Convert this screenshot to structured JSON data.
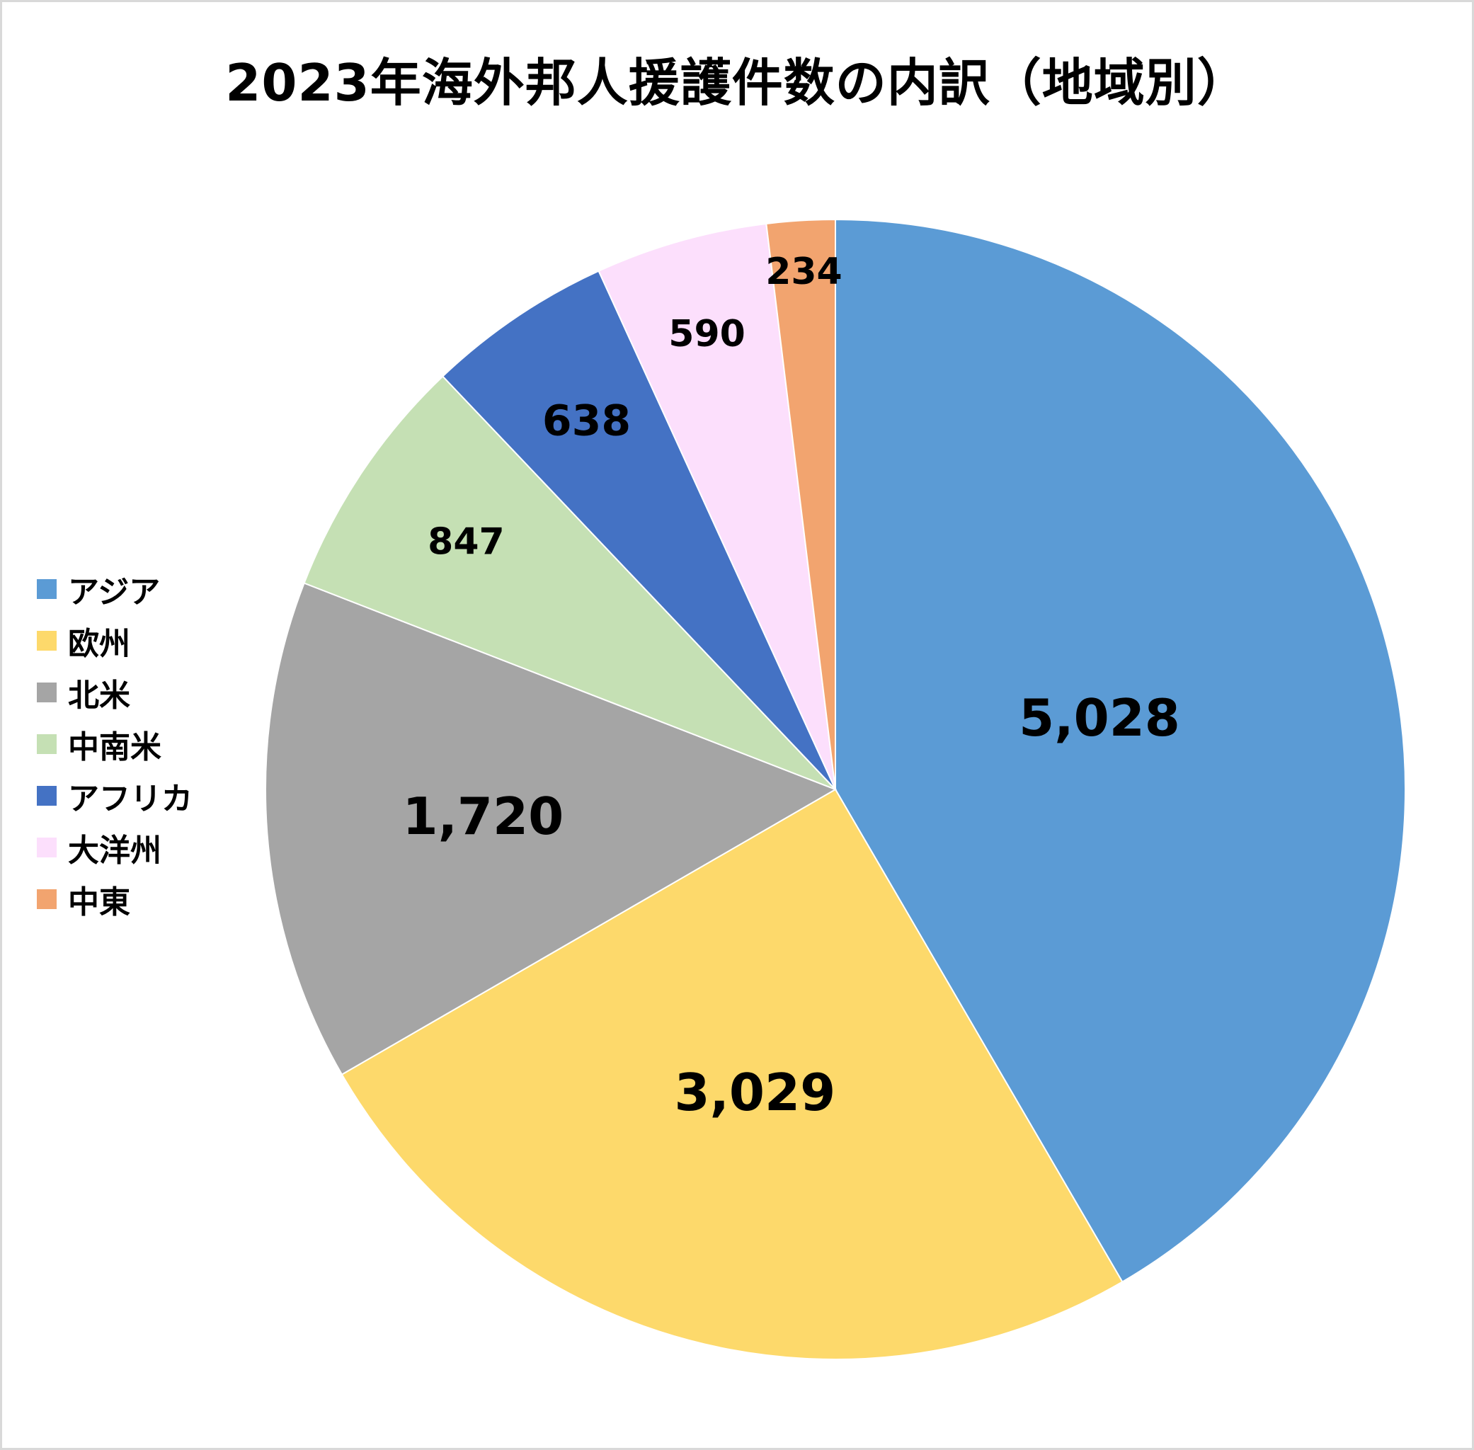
{
  "chart_data": {
    "type": "pie",
    "title": "2023年海外邦人援護件数の内訳（地域別）",
    "categories": [
      "アジア",
      "欧州",
      "北米",
      "中南米",
      "アフリカ",
      "大洋州",
      "中東"
    ],
    "values": [
      5028,
      3029,
      1720,
      847,
      638,
      590,
      234
    ],
    "value_labels": [
      "5,028",
      "3,029",
      "1,720",
      "847",
      "638",
      "590",
      "234"
    ],
    "colors": [
      "#5B9BD5",
      "#FDD96B",
      "#A5A5A5",
      "#C5E0B4",
      "#4472C4",
      "#FCDFFC",
      "#F2A46F"
    ],
    "start_angle": "12 o'clock",
    "direction": "clockwise",
    "legend_position": "left",
    "xlabel": "",
    "ylabel": ""
  },
  "legend": {
    "items": [
      {
        "label": "アジア",
        "color": "#5B9BD5"
      },
      {
        "label": "欧州",
        "color": "#FDD96B"
      },
      {
        "label": "北米",
        "color": "#A5A5A5"
      },
      {
        "label": "中南米",
        "color": "#C5E0B4"
      },
      {
        "label": "アフリカ",
        "color": "#4472C4"
      },
      {
        "label": "大洋州",
        "color": "#FCDFFC"
      },
      {
        "label": "中東",
        "color": "#F2A46F"
      }
    ]
  }
}
